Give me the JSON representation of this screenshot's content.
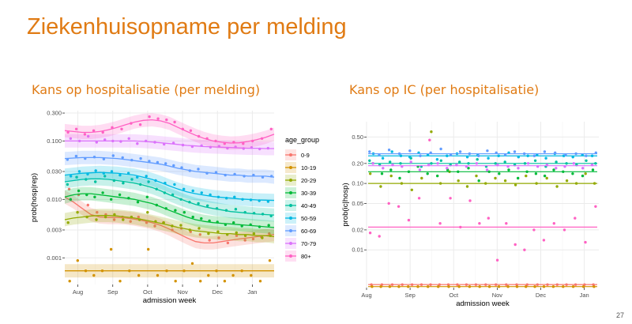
{
  "slide": {
    "title": "Ziekenhuisopname per melding",
    "left_subtitle": "Kans op hospitalisatie (per melding)",
    "right_subtitle": "Kans op IC (per hospitalisatie)",
    "page_number": "27"
  },
  "colors": {
    "0-9": "#f8766d",
    "10-19": "#d39200",
    "20-29": "#93aa00",
    "30-39": "#00ba38",
    "40-49": "#00c19f",
    "50-59": "#00b9e3",
    "60-69": "#619cff",
    "70-79": "#db72fb",
    "80+": "#ff61c3",
    "grid_major": "#ebebeb",
    "grid_minor": "#f5f5f5",
    "axis_text": "#4d4d4d"
  },
  "chart_data": [
    {
      "id": "left",
      "type": "scatter",
      "title": "Kans op hospitalisatie (per melding)",
      "xlabel": "admission week",
      "ylabel": "prob(hosp|rep)",
      "yscale": "log",
      "xlim": [
        0,
        24
      ],
      "ylim": [
        0.00035,
        0.33
      ],
      "x_ticks": [
        {
          "value": 1.5,
          "label": "Aug"
        },
        {
          "value": 5.5,
          "label": "Sep"
        },
        {
          "value": 9.5,
          "label": "Oct"
        },
        {
          "value": 13.5,
          "label": "Nov"
        },
        {
          "value": 17.5,
          "label": "Dec"
        },
        {
          "value": 21.5,
          "label": "Jan"
        }
      ],
      "y_ticks": [
        {
          "value": 0.001,
          "label": "0.001"
        },
        {
          "value": 0.003,
          "label": "0.003"
        },
        {
          "value": 0.01,
          "label": "0.010"
        },
        {
          "value": 0.03,
          "label": "0.030"
        },
        {
          "value": 0.1,
          "label": "0.100"
        },
        {
          "value": 0.3,
          "label": "0.300"
        }
      ],
      "legend": {
        "title": "age_group",
        "position": "right"
      },
      "band_factor": 1.3,
      "series": [
        {
          "name": "0-9",
          "smooth": [
            0.011,
            0.009,
            0.007,
            0.0055,
            0.005,
            0.0049,
            0.0049,
            0.0048,
            0.0046,
            0.0043,
            0.004,
            0.0036,
            0.0031,
            0.0026,
            0.0022,
            0.0019,
            0.0018,
            0.0018,
            0.0019,
            0.002,
            0.0021,
            0.0022,
            0.0023,
            0.0024,
            0.0025
          ],
          "points": [
            0.015,
            0.012,
            0.008,
            0.006,
            0.0055,
            0.0045,
            0.005,
            0.0042,
            0.005,
            0.004,
            0.0035,
            0.004,
            0.003,
            0.0032,
            0.0028,
            0.0025,
            0.002,
            0.0022,
            0.0018,
            0.0024,
            0.002,
            0.0021,
            0.0023,
            0.0026
          ]
        },
        {
          "name": "10-19",
          "smooth": [
            0.0006,
            0.0006,
            0.0006,
            0.0006,
            0.0006,
            0.0006,
            0.0006,
            0.0006,
            0.0006,
            0.0006,
            0.0006,
            0.0006,
            0.0006,
            0.0006,
            0.0006,
            0.0006,
            0.0006,
            0.0006,
            0.0006,
            0.0006,
            0.0006,
            0.0006,
            0.0006,
            0.0006,
            0.0006
          ],
          "points": [
            0.0004,
            0.0009,
            0.0006,
            0.0005,
            0.0006,
            0.0014,
            0.0004,
            0.0006,
            0.0005,
            0.0014,
            0.0005,
            0.0006,
            0.0004,
            0.0006,
            0.0008,
            0.0004,
            0.0005,
            0.0006,
            0.0004,
            0.0005,
            0.0006,
            0.0005,
            0.0004,
            0.0009
          ]
        },
        {
          "name": "20-29",
          "smooth": [
            0.0045,
            0.0048,
            0.005,
            0.0052,
            0.0053,
            0.0053,
            0.0052,
            0.005,
            0.0048,
            0.0045,
            0.0042,
            0.0039,
            0.0036,
            0.0033,
            0.0031,
            0.0029,
            0.0028,
            0.0027,
            0.0026,
            0.0026,
            0.0025,
            0.0025,
            0.0024,
            0.0024,
            0.0023
          ],
          "points": [
            0.004,
            0.006,
            0.005,
            0.0045,
            0.005,
            0.0055,
            0.0045,
            0.005,
            0.0045,
            0.006,
            0.0042,
            0.004,
            0.0035,
            0.0036,
            0.003,
            0.0032,
            0.0026,
            0.0028,
            0.0025,
            0.0027,
            0.0024,
            0.0026,
            0.0022,
            0.0024
          ]
        },
        {
          "name": "30-39",
          "smooth": [
            0.011,
            0.012,
            0.0125,
            0.0125,
            0.012,
            0.0115,
            0.011,
            0.0105,
            0.01,
            0.0092,
            0.0085,
            0.0075,
            0.0065,
            0.0057,
            0.005,
            0.0045,
            0.0042,
            0.004,
            0.0039,
            0.0038,
            0.0037,
            0.0036,
            0.0035,
            0.0034,
            0.0033
          ],
          "points": [
            0.01,
            0.014,
            0.012,
            0.011,
            0.013,
            0.01,
            0.012,
            0.0105,
            0.009,
            0.011,
            0.008,
            0.007,
            0.0065,
            0.006,
            0.005,
            0.0047,
            0.0043,
            0.0041,
            0.0037,
            0.004,
            0.0035,
            0.0037,
            0.0034,
            0.0036
          ]
        },
        {
          "name": "40-49",
          "smooth": [
            0.02,
            0.021,
            0.022,
            0.0225,
            0.0225,
            0.022,
            0.021,
            0.02,
            0.019,
            0.0175,
            0.016,
            0.014,
            0.012,
            0.0105,
            0.0092,
            0.0082,
            0.0075,
            0.007,
            0.0066,
            0.0062,
            0.006,
            0.0058,
            0.0056,
            0.0055,
            0.0054
          ],
          "points": [
            0.018,
            0.024,
            0.022,
            0.02,
            0.025,
            0.021,
            0.019,
            0.022,
            0.018,
            0.02,
            0.015,
            0.013,
            0.012,
            0.01,
            0.009,
            0.0085,
            0.0078,
            0.007,
            0.0065,
            0.0068,
            0.006,
            0.0058,
            0.0056,
            0.0052
          ]
        },
        {
          "name": "50-59",
          "smooth": [
            0.026,
            0.027,
            0.028,
            0.0285,
            0.029,
            0.0285,
            0.028,
            0.027,
            0.026,
            0.024,
            0.022,
            0.0195,
            0.017,
            0.015,
            0.0135,
            0.0125,
            0.0118,
            0.0112,
            0.0108,
            0.0105,
            0.0102,
            0.01,
            0.0098,
            0.0097,
            0.0096
          ],
          "points": [
            0.025,
            0.03,
            0.027,
            0.031,
            0.028,
            0.03,
            0.026,
            0.028,
            0.024,
            0.025,
            0.021,
            0.019,
            0.018,
            0.015,
            0.014,
            0.013,
            0.012,
            0.011,
            0.0105,
            0.011,
            0.01,
            0.0098,
            0.0095,
            0.0092
          ]
        },
        {
          "name": "60-69",
          "smooth": [
            0.05,
            0.051,
            0.052,
            0.052,
            0.052,
            0.051,
            0.05,
            0.048,
            0.046,
            0.044,
            0.042,
            0.04,
            0.037,
            0.034,
            0.032,
            0.03,
            0.029,
            0.028,
            0.027,
            0.026,
            0.026,
            0.025,
            0.025,
            0.025,
            0.024
          ],
          "points": [
            0.048,
            0.055,
            0.05,
            0.053,
            0.049,
            0.056,
            0.052,
            0.047,
            0.05,
            0.045,
            0.043,
            0.041,
            0.038,
            0.035,
            0.031,
            0.033,
            0.028,
            0.029,
            0.026,
            0.027,
            0.025,
            0.026,
            0.024,
            0.025
          ]
        },
        {
          "name": "70-79",
          "smooth": [
            0.1,
            0.1,
            0.1,
            0.1,
            0.1,
            0.1,
            0.1,
            0.1,
            0.1,
            0.098,
            0.096,
            0.093,
            0.09,
            0.087,
            0.084,
            0.082,
            0.08,
            0.079,
            0.078,
            0.077,
            0.076,
            0.075,
            0.075,
            0.074,
            0.074
          ],
          "points": [
            0.11,
            0.1,
            0.12,
            0.095,
            0.105,
            0.1,
            0.098,
            0.11,
            0.09,
            0.1,
            0.095,
            0.088,
            0.092,
            0.085,
            0.08,
            0.083,
            0.078,
            0.081,
            0.075,
            0.079,
            0.074,
            0.077,
            0.073,
            0.075
          ]
        },
        {
          "name": "80+",
          "smooth": [
            0.15,
            0.145,
            0.14,
            0.14,
            0.145,
            0.155,
            0.17,
            0.19,
            0.21,
            0.225,
            0.23,
            0.22,
            0.2,
            0.17,
            0.145,
            0.125,
            0.11,
            0.1,
            0.095,
            0.092,
            0.093,
            0.098,
            0.105,
            0.115,
            0.13
          ],
          "points": [
            0.14,
            0.16,
            0.13,
            0.15,
            0.14,
            0.17,
            0.16,
            0.2,
            0.19,
            0.26,
            0.24,
            0.23,
            0.21,
            0.16,
            0.15,
            0.12,
            0.11,
            0.1,
            0.09,
            0.095,
            0.09,
            0.1,
            0.11,
            0.16
          ]
        }
      ]
    },
    {
      "id": "right",
      "type": "scatter",
      "title": "Kans op IC (per hospitalisatie)",
      "xlabel": "admission week",
      "ylabel": "prob(ic|hosp)",
      "yscale": "log",
      "xlim": [
        0,
        24
      ],
      "ylim": [
        0.0027,
        0.85
      ],
      "x_ticks": [
        {
          "value": 0,
          "label": "Aug"
        },
        {
          "value": 4.5,
          "label": "Sep"
        },
        {
          "value": 9,
          "label": "Oct"
        },
        {
          "value": 13.5,
          "label": "Nov"
        },
        {
          "value": 18,
          "label": "Dec"
        },
        {
          "value": 22.5,
          "label": "Jan"
        }
      ],
      "y_ticks": [
        {
          "value": 0.01,
          "label": "0.01"
        },
        {
          "value": 0.02,
          "label": "0.02"
        },
        {
          "value": 0.05,
          "label": "0.05"
        },
        {
          "value": 0.1,
          "label": "0.10"
        },
        {
          "value": 0.2,
          "label": "0.20"
        },
        {
          "value": 0.5,
          "label": "0.50"
        }
      ],
      "series": [
        {
          "name": "0-9",
          "level": 0.003,
          "points": [
            0.003,
            0.003,
            0.003,
            0.003,
            0.003,
            0.003,
            0.003,
            0.003,
            0.003,
            0.003,
            0.003,
            0.003,
            0.003,
            0.003,
            0.003,
            0.003,
            0.003,
            0.003,
            0.003,
            0.003,
            0.003,
            0.003,
            0.003,
            0.003
          ]
        },
        {
          "name": "10-19",
          "level": 0.0028,
          "points": [
            0.0028,
            0.0028,
            0.0028,
            0.0028,
            0.0028,
            0.0028,
            0.0028,
            0.0028,
            0.0028,
            0.0028,
            0.0028,
            0.0028,
            0.0028,
            0.0028,
            0.0028,
            0.0028,
            0.0028,
            0.0028,
            0.0028,
            0.0028,
            0.0028,
            0.0028,
            0.0028,
            0.0028
          ]
        },
        {
          "name": "20-29",
          "level": 0.1,
          "points": [
            0.14,
            0.09,
            0.13,
            0.1,
            0.08,
            0.12,
            0.6,
            0.1,
            0.15,
            0.11,
            0.09,
            0.13,
            0.1,
            0.12,
            0.11,
            0.095,
            0.13,
            0.1,
            0.12,
            0.09,
            0.11,
            0.1,
            0.14,
            0.1
          ]
        },
        {
          "name": "30-39",
          "level": 0.15,
          "points": [
            0.2,
            0.14,
            0.16,
            0.12,
            0.15,
            0.18,
            0.14,
            0.13,
            0.16,
            0.15,
            0.17,
            0.11,
            0.15,
            0.14,
            0.16,
            0.12,
            0.15,
            0.14,
            0.13,
            0.16,
            0.15,
            0.14,
            0.13,
            0.16
          ]
        },
        {
          "name": "40-49",
          "level": 0.2,
          "points": [
            0.22,
            0.19,
            0.21,
            0.2,
            0.24,
            0.18,
            0.2,
            0.22,
            0.19,
            0.21,
            0.2,
            0.23,
            0.18,
            0.2,
            0.21,
            0.19,
            0.2,
            0.22,
            0.18,
            0.21,
            0.2,
            0.19,
            0.22,
            0.2
          ]
        },
        {
          "name": "50-59",
          "level": 0.26,
          "points": [
            0.28,
            0.24,
            0.3,
            0.26,
            0.25,
            0.29,
            0.27,
            0.23,
            0.26,
            0.28,
            0.25,
            0.27,
            0.24,
            0.26,
            0.29,
            0.25,
            0.26,
            0.27,
            0.24,
            0.28,
            0.26,
            0.25,
            0.27,
            0.26
          ]
        },
        {
          "name": "60-69",
          "level": 0.28,
          "points": [
            0.3,
            0.27,
            0.32,
            0.28,
            0.31,
            0.26,
            0.29,
            0.33,
            0.27,
            0.3,
            0.28,
            0.26,
            0.31,
            0.29,
            0.27,
            0.3,
            0.28,
            0.26,
            0.3,
            0.29,
            0.27,
            0.28,
            0.26,
            0.29
          ]
        },
        {
          "name": "70-79",
          "level": 0.185,
          "points": [
            0.2,
            0.17,
            0.19,
            0.18,
            0.21,
            0.16,
            0.19,
            0.2,
            0.17,
            0.19,
            0.18,
            0.2,
            0.16,
            0.19,
            0.18,
            0.17,
            0.2,
            0.18,
            0.19,
            0.17,
            0.18,
            0.2,
            0.17,
            0.19
          ]
        },
        {
          "name": "80+",
          "level": 0.022,
          "points": [
            0.018,
            0.016,
            0.05,
            0.045,
            0.028,
            0.06,
            0.45,
            0.025,
            0.06,
            0.022,
            0.055,
            0.025,
            0.03,
            0.007,
            0.025,
            0.012,
            0.01,
            0.02,
            0.014,
            0.025,
            0.02,
            0.03,
            0.013,
            0.045
          ]
        }
      ]
    }
  ]
}
